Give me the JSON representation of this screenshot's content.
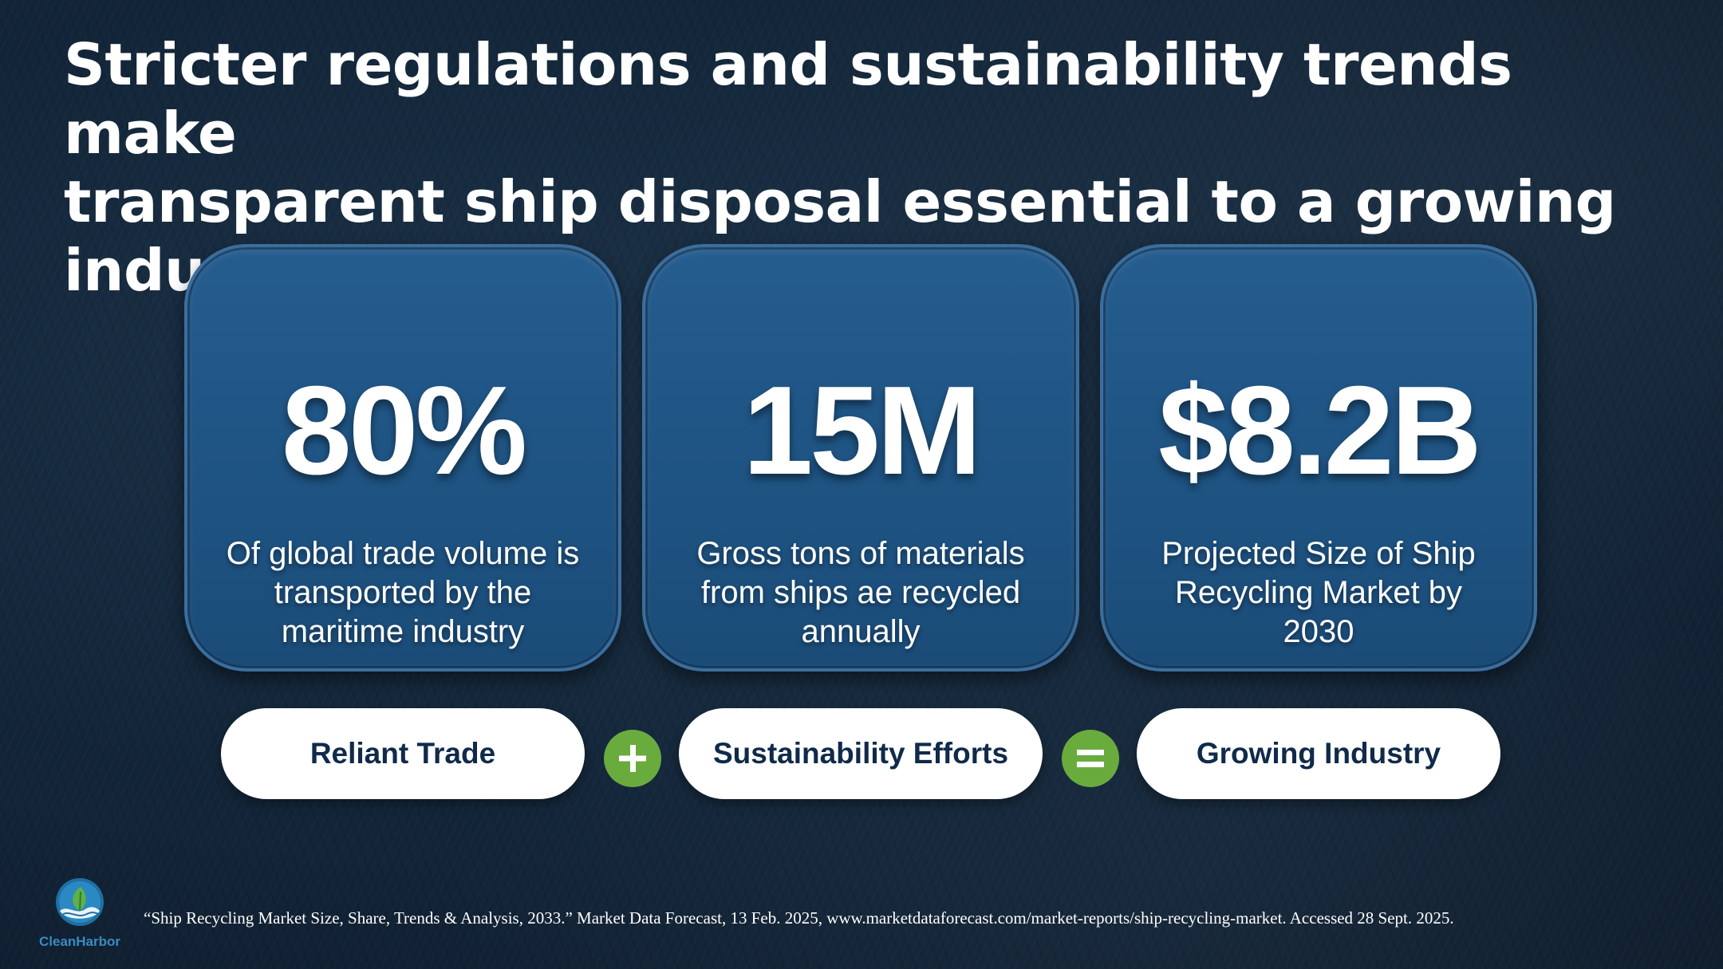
{
  "title": {
    "line1": "Stricter regulations and sustainability trends make",
    "line2": "transparent ship disposal essential to a growing industry"
  },
  "cards": [
    {
      "stat": "80%",
      "line1": "Of global trade volume is",
      "line2": "transported by the",
      "line3": "maritime industry"
    },
    {
      "stat": "15M",
      "line1": "Gross tons of materials",
      "line2": "from ships ae recycled",
      "line3": "annually"
    },
    {
      "stat": "$8.2B",
      "line1": "Projected Size of Ship",
      "line2": "Recycling Market by",
      "line3": "2030"
    }
  ],
  "equation": {
    "term1": "Reliant Trade",
    "term2": "Sustainability Efforts",
    "result": "Growing Industry",
    "plus_icon": "plus-icon",
    "equals_icon": "equals-icon"
  },
  "logo": {
    "name": "CleanHarbor",
    "icon": "leaf-wave-logo-icon"
  },
  "citation": "“Ship Recycling Market Size, Share, Trends & Analysis, 2033.” Market Data Forecast, 13 Feb. 2025, www.marketdataforecast.com/market-reports/ship-recycling-market. Accessed 28 Sept. 2025.",
  "colors": {
    "card": "#1f5585",
    "accent_green": "#6aab3e",
    "pill_text": "#102a4a",
    "logo_blue": "#3a8bc0"
  }
}
